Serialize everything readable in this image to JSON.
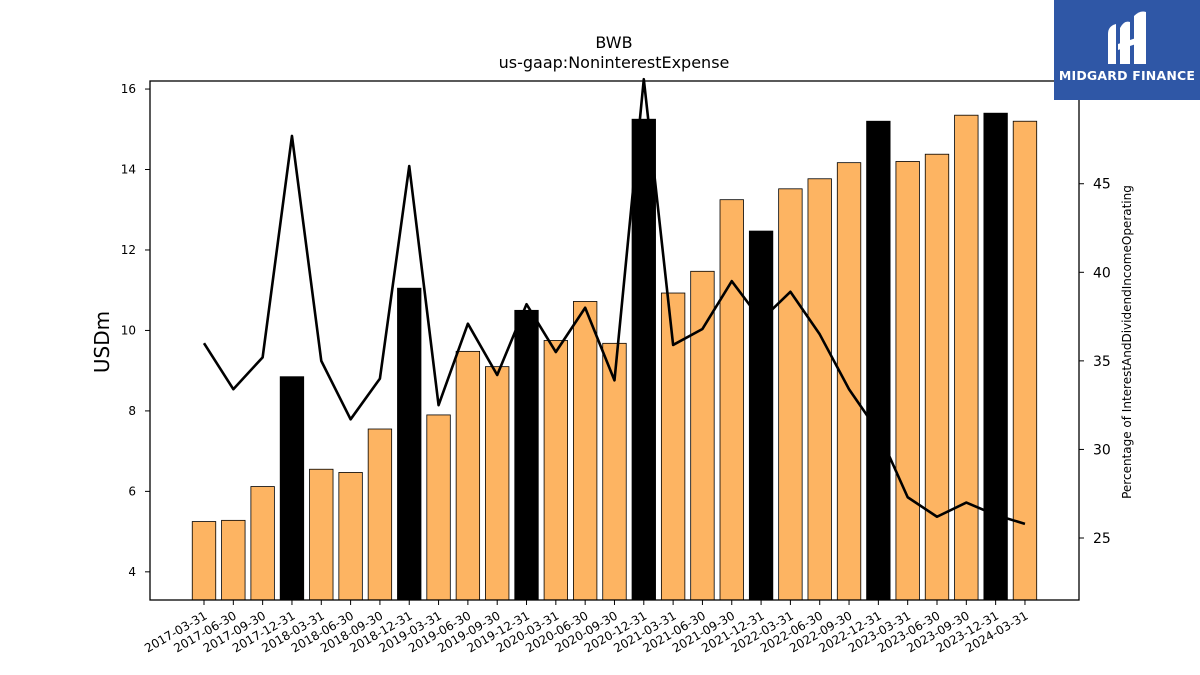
{
  "chart_data": {
    "type": "bar",
    "title": "BWB",
    "subtitle": "us-gaap:NoninterestExpense",
    "ylabel": "USDm",
    "ylabel_right": "Percentage of InterestAndDividendIncomeOperating",
    "ylim": [
      3.3,
      16.2
    ],
    "ylim_right": [
      21.5,
      50.8
    ],
    "yticks": [
      4,
      6,
      8,
      10,
      12,
      14,
      16
    ],
    "yticks_right": [
      25,
      30,
      35,
      40,
      45,
      50
    ],
    "categories": [
      "2017-03-31",
      "2017-06-30",
      "2017-09-30",
      "2017-12-31",
      "2018-03-31",
      "2018-06-30",
      "2018-09-30",
      "2018-12-31",
      "2019-03-31",
      "2019-06-30",
      "2019-09-30",
      "2019-12-31",
      "2020-03-31",
      "2020-06-30",
      "2020-09-30",
      "2020-12-31",
      "2021-03-31",
      "2021-06-30",
      "2021-09-30",
      "2021-12-31",
      "2022-03-31",
      "2022-06-30",
      "2022-09-30",
      "2022-12-31",
      "2023-03-31",
      "2023-06-30",
      "2023-09-30",
      "2023-12-31",
      "2024-03-31"
    ],
    "series": [
      {
        "kind": "bar",
        "values": [
          5.25,
          5.28,
          6.12,
          8.85,
          6.55,
          6.47,
          7.55,
          11.05,
          7.9,
          9.48,
          9.1,
          10.5,
          9.75,
          10.72,
          9.68,
          15.25,
          10.93,
          11.47,
          13.25,
          12.47,
          13.52,
          13.77,
          14.17,
          15.2,
          14.2,
          14.38,
          15.35,
          15.4,
          15.2
        ],
        "colors": [
          "#fdb462",
          "#fdb462",
          "#fdb462",
          "#000000",
          "#fdb462",
          "#fdb462",
          "#fdb462",
          "#000000",
          "#fdb462",
          "#fdb462",
          "#fdb462",
          "#000000",
          "#fdb462",
          "#fdb462",
          "#fdb462",
          "#000000",
          "#fdb462",
          "#fdb462",
          "#fdb462",
          "#000000",
          "#fdb462",
          "#fdb462",
          "#fdb462",
          "#000000",
          "#fdb462",
          "#fdb462",
          "#fdb462",
          "#000000",
          "#fdb462"
        ]
      },
      {
        "kind": "line",
        "axis": "right",
        "color": "#000000",
        "values": [
          36.0,
          33.4,
          35.2,
          47.7,
          35.0,
          31.7,
          34.0,
          46.0,
          32.5,
          37.1,
          34.2,
          38.2,
          35.5,
          38.0,
          33.9,
          50.9,
          35.9,
          36.8,
          39.5,
          37.3,
          38.9,
          36.5,
          33.4,
          31.0,
          27.3,
          26.2,
          27.0,
          26.3,
          25.8
        ]
      }
    ],
    "grid": false,
    "legend": "none"
  },
  "branding": {
    "logo_text": "MIDGARD FINANCE",
    "logo_color": "#2f57a6",
    "logo_icon": "midgard-m-icon"
  }
}
